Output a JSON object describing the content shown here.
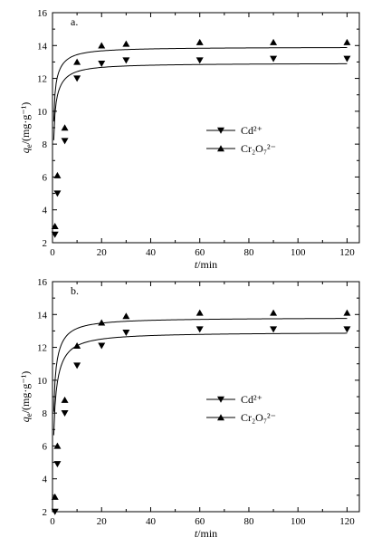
{
  "chart_data": [
    {
      "type": "scatter",
      "panel_label": "a.",
      "xlabel_italic": "t",
      "xlabel_rest": "/min",
      "ylabel": "q_e/(mg·g⁻¹)",
      "xlim": [
        0,
        125
      ],
      "ylim": [
        2,
        16
      ],
      "xticks": [
        0,
        20,
        40,
        60,
        80,
        100,
        120
      ],
      "yticks": [
        2,
        4,
        6,
        8,
        10,
        12,
        14,
        16
      ],
      "grid": false,
      "legend_position": "right-middle",
      "series": [
        {
          "name": "Cd²⁺",
          "marker": "triangle-down",
          "x": [
            1,
            2,
            5,
            10,
            20,
            30,
            60,
            90,
            120
          ],
          "y": [
            2.5,
            5.0,
            8.2,
            12.0,
            12.9,
            13.1,
            13.1,
            13.2,
            13.2
          ],
          "fit_qe": 13.2,
          "fit_k": 0.18
        },
        {
          "name": "Cr₂O₇²⁻",
          "marker": "triangle-up",
          "x": [
            1,
            2,
            5,
            10,
            20,
            30,
            60,
            90,
            120
          ],
          "y": [
            3.0,
            6.1,
            9.0,
            13.0,
            14.0,
            14.1,
            14.2,
            14.2,
            14.2
          ],
          "fit_qe": 14.2,
          "fit_k": 0.2
        }
      ]
    },
    {
      "type": "scatter",
      "panel_label": "b.",
      "xlabel_italic": "t",
      "xlabel_rest": "/min",
      "ylabel": "q_e/(mg·g⁻¹)",
      "xlim": [
        0,
        125
      ],
      "ylim": [
        2,
        16
      ],
      "xticks": [
        0,
        20,
        40,
        60,
        80,
        100,
        120
      ],
      "yticks": [
        2,
        4,
        6,
        8,
        10,
        12,
        14,
        16
      ],
      "grid": false,
      "legend_position": "right-middle",
      "series": [
        {
          "name": "Cd²⁺",
          "marker": "triangle-down",
          "x": [
            1,
            2,
            5,
            10,
            20,
            30,
            60,
            90,
            120
          ],
          "y": [
            2.0,
            4.9,
            8.0,
            10.9,
            12.1,
            12.9,
            13.1,
            13.1,
            13.1
          ],
          "fit_qe": 13.2,
          "fit_k": 0.11
        },
        {
          "name": "Cr₂O₇²⁻",
          "marker": "triangle-up",
          "x": [
            1,
            2,
            5,
            10,
            20,
            30,
            60,
            90,
            120
          ],
          "y": [
            2.9,
            6.0,
            8.8,
            12.1,
            13.5,
            13.9,
            14.1,
            14.1,
            14.1
          ],
          "fit_qe": 14.1,
          "fit_k": 0.14
        }
      ]
    }
  ]
}
